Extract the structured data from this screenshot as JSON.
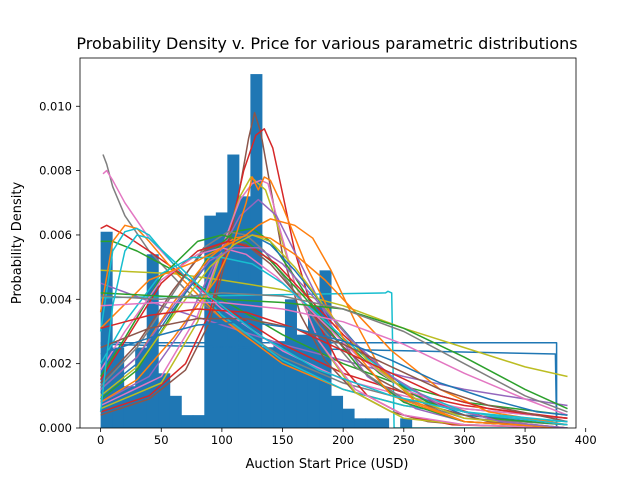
{
  "chart_data": {
    "type": "bar",
    "title": "Probability Density v. Price for various parametric distributions",
    "xlabel": "Auction Start Price (USD)",
    "ylabel": "Probability Density",
    "xlim": [
      -17,
      392
    ],
    "ylim": [
      0,
      0.0115
    ],
    "grid": false,
    "legend": "none",
    "x_ticks": [
      0,
      50,
      100,
      150,
      200,
      250,
      300,
      350,
      400
    ],
    "x_tick_labels": [
      "0",
      "50",
      "100",
      "150",
      "200",
      "250",
      "300",
      "350",
      "400"
    ],
    "y_ticks": [
      0,
      0.002,
      0.004,
      0.006,
      0.008,
      0.01
    ],
    "y_tick_labels": [
      "0.000",
      "0.002",
      "0.004",
      "0.006",
      "0.008",
      "0.010"
    ],
    "histogram": {
      "color": "#1f77b4",
      "bin_edges": [
        0,
        9.5,
        19,
        28.5,
        38,
        47.5,
        57,
        66.5,
        76,
        85.5,
        95,
        104.5,
        114,
        123.5,
        133,
        142.5,
        152,
        161.5,
        171,
        180.5,
        190,
        199.5,
        209,
        218.5,
        228,
        237.5,
        247,
        256.5,
        266,
        275.5,
        285,
        294.5,
        304,
        313.5,
        323,
        332.5,
        342,
        351.5,
        361,
        370.5,
        380
      ],
      "values": [
        0.0061,
        0.0025,
        0.0013,
        0.0025,
        0.0054,
        0.0017,
        0.001,
        0.0004,
        0.0004,
        0.0066,
        0.0067,
        0.0085,
        0.0072,
        0.011,
        0.0025,
        0.0027,
        0.004,
        0.0029,
        0.0038,
        0.0049,
        0.001,
        0.0006,
        0.0003,
        0.0003,
        0.0003,
        0.0,
        0.0003,
        0.0,
        0.0,
        0.0,
        0.0,
        0.0,
        0.0,
        0.0,
        0.0,
        0.0,
        0.0,
        0.0,
        0.0,
        0.0
      ]
    },
    "series": [
      {
        "color": "#1f77b4",
        "x": [
          0,
          376,
          376,
          385
        ],
        "y": [
          0.00265,
          0.00265,
          0.0,
          0.0
        ]
      },
      {
        "color": "#1f77b4",
        "x": [
          0,
          375,
          376,
          385
        ],
        "y": [
          0.0026,
          0.0023,
          0.0,
          0.0
        ]
      },
      {
        "color": "#17becf",
        "x": [
          0,
          235,
          237,
          240,
          242,
          385
        ],
        "y": [
          0.00405,
          0.0042,
          0.00425,
          0.0042,
          0.0,
          0.0
        ]
      },
      {
        "color": "#bcbd22",
        "x": [
          0,
          60,
          100,
          150,
          200,
          250,
          300,
          350,
          385
        ],
        "y": [
          0.0049,
          0.0048,
          0.0046,
          0.0043,
          0.0038,
          0.0031,
          0.0025,
          0.0019,
          0.0016
        ]
      },
      {
        "color": "#9467bd",
        "x": [
          0,
          50,
          100,
          150,
          200,
          250,
          300,
          350,
          385
        ],
        "y": [
          0.0045,
          0.0038,
          0.0032,
          0.0026,
          0.0021,
          0.0016,
          0.0012,
          0.0009,
          0.0007
        ]
      },
      {
        "color": "#7f7f7f",
        "x": [
          2,
          5,
          10,
          20,
          40,
          70,
          100,
          150,
          200,
          250,
          300,
          385
        ],
        "y": [
          0.0085,
          0.0082,
          0.0075,
          0.0066,
          0.0055,
          0.0043,
          0.0034,
          0.0022,
          0.0014,
          0.0009,
          0.0006,
          0.0003
        ]
      },
      {
        "color": "#e377c2",
        "x": [
          2,
          5,
          10,
          20,
          40,
          70,
          100,
          150,
          200,
          250,
          300,
          385
        ],
        "y": [
          0.0079,
          0.008,
          0.0077,
          0.007,
          0.0059,
          0.0047,
          0.0037,
          0.0024,
          0.0015,
          0.001,
          0.0006,
          0.0003
        ]
      },
      {
        "color": "#2ca02c",
        "x": [
          0,
          10,
          30,
          60,
          100,
          150,
          200,
          250,
          300,
          385
        ],
        "y": [
          0.0058,
          0.0058,
          0.0055,
          0.0049,
          0.004,
          0.0029,
          0.002,
          0.0013,
          0.0008,
          0.0004
        ]
      },
      {
        "color": "#d62728",
        "x": [
          0,
          5,
          20,
          40,
          70,
          100,
          150,
          200,
          250,
          300,
          385
        ],
        "y": [
          0.0062,
          0.0063,
          0.006,
          0.0055,
          0.0047,
          0.0038,
          0.0026,
          0.0017,
          0.0011,
          0.0007,
          0.0003
        ]
      },
      {
        "color": "#ff7f0e",
        "x": [
          0,
          10,
          20,
          30,
          40,
          60,
          100,
          150,
          200,
          250,
          300,
          385
        ],
        "y": [
          0.0036,
          0.0058,
          0.0063,
          0.0062,
          0.0058,
          0.0049,
          0.0034,
          0.002,
          0.0012,
          0.0007,
          0.0004,
          0.0002
        ]
      },
      {
        "color": "#17becf",
        "x": [
          0,
          10,
          20,
          30,
          40,
          60,
          100,
          150,
          200,
          250,
          300,
          385
        ],
        "y": [
          0.003,
          0.0055,
          0.0061,
          0.0062,
          0.006,
          0.0051,
          0.0035,
          0.0021,
          0.0012,
          0.0007,
          0.0004,
          0.0002
        ]
      },
      {
        "color": "#8c564b",
        "x": [
          0,
          40,
          70,
          90,
          105,
          115,
          122,
          127,
          132,
          140,
          150,
          165,
          185,
          210,
          240,
          270,
          300,
          385
        ],
        "y": [
          0.0004,
          0.0009,
          0.0018,
          0.0033,
          0.0055,
          0.0075,
          0.009,
          0.0098,
          0.0092,
          0.0075,
          0.0054,
          0.0035,
          0.0021,
          0.0011,
          0.0005,
          0.0002,
          0.0001,
          0.0
        ]
      },
      {
        "color": "#d62728",
        "x": [
          0,
          40,
          70,
          90,
          105,
          118,
          128,
          135,
          142,
          150,
          160,
          175,
          195,
          220,
          250,
          290,
          385
        ],
        "y": [
          0.0005,
          0.001,
          0.002,
          0.0036,
          0.0058,
          0.008,
          0.0091,
          0.0093,
          0.0087,
          0.0073,
          0.0055,
          0.0036,
          0.0021,
          0.001,
          0.0004,
          0.0001,
          0.0
        ]
      },
      {
        "color": "#bcbd22",
        "x": [
          0,
          50,
          80,
          100,
          115,
          124,
          130,
          136,
          145,
          160,
          180,
          210,
          250,
          300,
          385
        ],
        "y": [
          0.0006,
          0.0014,
          0.0033,
          0.0055,
          0.0072,
          0.0078,
          0.0076,
          0.0074,
          0.0064,
          0.0045,
          0.0027,
          0.0011,
          0.0003,
          0.0001,
          0.0
        ]
      },
      {
        "color": "#e377c2",
        "x": [
          0,
          50,
          80,
          100,
          115,
          125,
          132,
          138,
          147,
          160,
          180,
          210,
          250,
          300,
          385
        ],
        "y": [
          0.0007,
          0.0016,
          0.0035,
          0.0056,
          0.0071,
          0.0076,
          0.0077,
          0.0076,
          0.0063,
          0.0045,
          0.0027,
          0.0012,
          0.0004,
          0.0001,
          0.0
        ]
      },
      {
        "color": "#9467bd",
        "x": [
          0,
          40,
          70,
          95,
          115,
          130,
          145,
          165,
          190,
          220,
          260,
          300,
          385
        ],
        "y": [
          0.0008,
          0.0016,
          0.0032,
          0.0052,
          0.0066,
          0.0071,
          0.0066,
          0.0051,
          0.0032,
          0.0016,
          0.0006,
          0.0002,
          0.0
        ]
      },
      {
        "color": "#2ca02c",
        "x": [
          0,
          30,
          60,
          90,
          110,
          125,
          140,
          160,
          185,
          215,
          250,
          300,
          385
        ],
        "y": [
          0.0009,
          0.0018,
          0.0036,
          0.0054,
          0.0061,
          0.0062,
          0.0058,
          0.0047,
          0.0032,
          0.0018,
          0.0008,
          0.0002,
          0.0
        ]
      },
      {
        "color": "#ff7f0e",
        "x": [
          0,
          30,
          60,
          90,
          110,
          125,
          140,
          160,
          185,
          210,
          240,
          280,
          320,
          385
        ],
        "y": [
          0.0012,
          0.0022,
          0.0039,
          0.0053,
          0.0059,
          0.006,
          0.0059,
          0.0054,
          0.0046,
          0.0036,
          0.0024,
          0.0012,
          0.0005,
          0.0001
        ]
      },
      {
        "color": "#1f77b4",
        "x": [
          0,
          30,
          60,
          90,
          110,
          125,
          140,
          160,
          190,
          220,
          260,
          300,
          385
        ],
        "y": [
          0.0011,
          0.002,
          0.0037,
          0.0052,
          0.0058,
          0.006,
          0.0057,
          0.0049,
          0.0035,
          0.0022,
          0.001,
          0.0004,
          0.0001
        ]
      },
      {
        "color": "#7f7f7f",
        "x": [
          0,
          30,
          60,
          85,
          105,
          120,
          135,
          155,
          180,
          210,
          250,
          300,
          385
        ],
        "y": [
          0.0013,
          0.0025,
          0.0042,
          0.0056,
          0.0061,
          0.006,
          0.0055,
          0.0045,
          0.0032,
          0.0019,
          0.0009,
          0.0003,
          0.0001
        ]
      },
      {
        "color": "#8c564b",
        "x": [
          0,
          30,
          60,
          85,
          105,
          120,
          140,
          165,
          195,
          230,
          270,
          320,
          385
        ],
        "y": [
          0.0014,
          0.0026,
          0.0043,
          0.0055,
          0.0058,
          0.0057,
          0.0051,
          0.004,
          0.0027,
          0.0015,
          0.0007,
          0.0002,
          0.0
        ]
      },
      {
        "color": "#2ca02c",
        "x": [
          0,
          20,
          50,
          80,
          100,
          120,
          140,
          165,
          195,
          230,
          270,
          320,
          385
        ],
        "y": [
          0.0016,
          0.0028,
          0.0047,
          0.0058,
          0.006,
          0.0058,
          0.0052,
          0.0042,
          0.0029,
          0.0017,
          0.0008,
          0.0003,
          0.0001
        ]
      },
      {
        "color": "#d62728",
        "x": [
          0,
          20,
          50,
          80,
          105,
          125,
          145,
          170,
          200,
          235,
          275,
          330,
          385
        ],
        "y": [
          0.0015,
          0.0027,
          0.0045,
          0.0055,
          0.0058,
          0.0056,
          0.0051,
          0.0041,
          0.0029,
          0.0017,
          0.0008,
          0.0002,
          0.0
        ]
      },
      {
        "color": "#e377c2",
        "x": [
          0,
          20,
          50,
          80,
          100,
          120,
          145,
          175,
          210,
          250,
          300,
          385
        ],
        "y": [
          0.0018,
          0.003,
          0.0046,
          0.0054,
          0.0056,
          0.0054,
          0.0047,
          0.0036,
          0.0023,
          0.0012,
          0.0005,
          0.0001
        ]
      },
      {
        "color": "#17becf",
        "x": [
          0,
          20,
          50,
          75,
          100,
          125,
          150,
          180,
          215,
          255,
          300,
          385
        ],
        "y": [
          0.002,
          0.0033,
          0.0048,
          0.0053,
          0.0053,
          0.0051,
          0.0045,
          0.0035,
          0.0023,
          0.0012,
          0.0005,
          0.0001
        ]
      },
      {
        "color": "#ff7f0e",
        "x": [
          0,
          40,
          80,
          100,
          120,
          130,
          140,
          160,
          175,
          190,
          210,
          230,
          260,
          300,
          385
        ],
        "y": [
          0.0031,
          0.0046,
          0.0052,
          0.0056,
          0.006,
          0.0063,
          0.0065,
          0.0063,
          0.0059,
          0.0049,
          0.0033,
          0.0019,
          0.0008,
          0.0002,
          0.0
        ]
      },
      {
        "color": "#ff7f0e",
        "x": [
          0,
          30,
          60,
          95,
          110,
          120,
          125,
          130,
          135,
          140,
          150,
          170,
          200,
          240,
          300,
          385
        ],
        "y": [
          0.0008,
          0.0015,
          0.0028,
          0.0046,
          0.0058,
          0.007,
          0.0078,
          0.0074,
          0.0078,
          0.0077,
          0.0069,
          0.005,
          0.0028,
          0.001,
          0.0002,
          0.0
        ]
      },
      {
        "color": "#bcbd22",
        "x": [
          0,
          30,
          60,
          90,
          110,
          125,
          140,
          160,
          190,
          220,
          260,
          300,
          385
        ],
        "y": [
          0.001,
          0.0019,
          0.0035,
          0.005,
          0.0057,
          0.006,
          0.0058,
          0.005,
          0.0035,
          0.0021,
          0.0009,
          0.0003,
          0.0
        ]
      },
      {
        "color": "#9467bd",
        "x": [
          0,
          30,
          60,
          90,
          110,
          130,
          150,
          175,
          205,
          240,
          280,
          330,
          385
        ],
        "y": [
          0.0012,
          0.0022,
          0.0038,
          0.0052,
          0.0056,
          0.0056,
          0.0051,
          0.0041,
          0.0028,
          0.0016,
          0.0007,
          0.0002,
          0.0
        ]
      },
      {
        "color": "#2ca02c",
        "x": [
          0,
          50,
          100,
          150,
          200,
          250,
          300,
          350,
          385
        ],
        "y": [
          0.0042,
          0.0041,
          0.004,
          0.0039,
          0.0037,
          0.0031,
          0.0022,
          0.0012,
          0.0006
        ]
      },
      {
        "color": "#7f7f7f",
        "x": [
          0,
          50,
          100,
          150,
          200,
          250,
          300,
          350,
          385
        ],
        "y": [
          0.0041,
          0.004,
          0.0042,
          0.0041,
          0.0037,
          0.003,
          0.002,
          0.001,
          0.0005
        ]
      },
      {
        "color": "#e377c2",
        "x": [
          0,
          50,
          100,
          150,
          200,
          250,
          300,
          350,
          385
        ],
        "y": [
          0.0038,
          0.0039,
          0.0039,
          0.0037,
          0.0033,
          0.0026,
          0.0017,
          0.0009,
          0.0004
        ]
      },
      {
        "color": "#d62728",
        "x": [
          0,
          40,
          80,
          120,
          160,
          200,
          240,
          280,
          320,
          360,
          385
        ],
        "y": [
          0.0031,
          0.0035,
          0.0037,
          0.0036,
          0.0031,
          0.0024,
          0.0017,
          0.001,
          0.0006,
          0.0004,
          0.0003
        ]
      },
      {
        "color": "#8c564b",
        "x": [
          0,
          40,
          80,
          120,
          160,
          200,
          240,
          280,
          320,
          360,
          385
        ],
        "y": [
          0.0025,
          0.0031,
          0.0034,
          0.0034,
          0.0031,
          0.0026,
          0.0019,
          0.0012,
          0.0007,
          0.0004,
          0.0002
        ]
      },
      {
        "color": "#1f77b4",
        "x": [
          0,
          40,
          80,
          120,
          160,
          200,
          240,
          280,
          320,
          360,
          385
        ],
        "y": [
          0.0023,
          0.0028,
          0.0032,
          0.0033,
          0.0031,
          0.0027,
          0.0021,
          0.0014,
          0.0009,
          0.0005,
          0.0004
        ]
      },
      {
        "color": "#17becf",
        "x": [
          0,
          5,
          10,
          20,
          30,
          40,
          60,
          90,
          130,
          180,
          240,
          300,
          385
        ],
        "y": [
          0.0005,
          0.0022,
          0.0038,
          0.0055,
          0.006,
          0.0059,
          0.0052,
          0.0041,
          0.0029,
          0.0018,
          0.001,
          0.0005,
          0.0002
        ]
      }
    ]
  }
}
